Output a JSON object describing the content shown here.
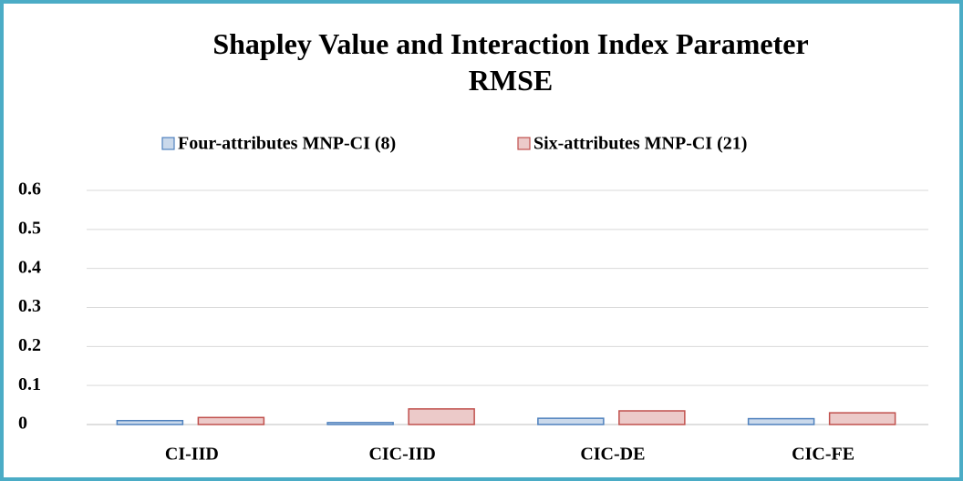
{
  "chart_data": {
    "type": "bar",
    "title": "Shapley Value and Interaction Index Parameter RMSE",
    "categories": [
      "CI-IID",
      "CIC-IID",
      "CIC-DE",
      "CIC-FE"
    ],
    "series": [
      {
        "name": "Four-attributes MNP-CI (8)",
        "color": "#4f81bd",
        "values": [
          0.01,
          0.005,
          0.016,
          0.015
        ]
      },
      {
        "name": "Six-attributes MNP-CI (21)",
        "color": "#c0504d",
        "values": [
          0.018,
          0.04,
          0.035,
          0.03
        ]
      }
    ],
    "ylim": [
      0,
      0.6
    ],
    "yticks": [
      0,
      0.1,
      0.2,
      0.3,
      0.4,
      0.5,
      0.6
    ],
    "grid": true,
    "legend": "top"
  }
}
